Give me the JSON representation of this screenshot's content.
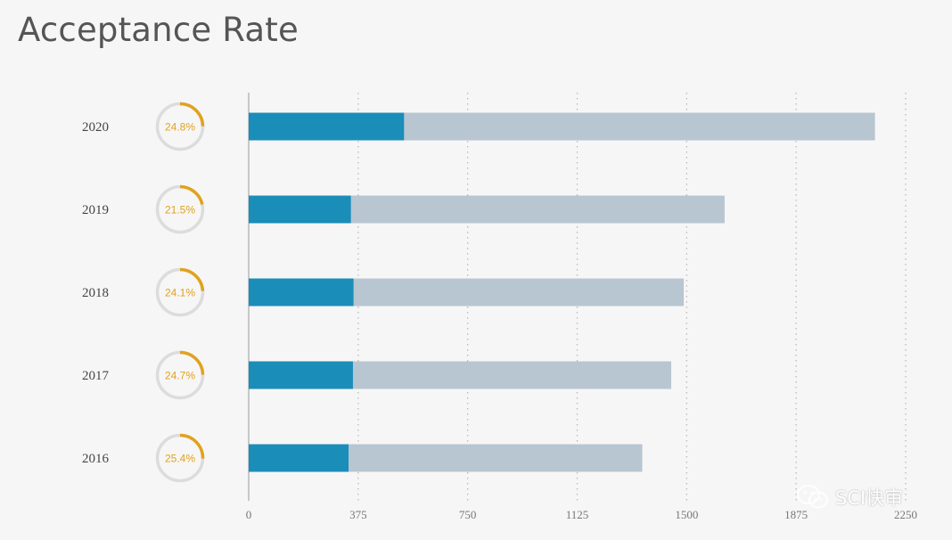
{
  "title": "Acceptance Rate",
  "watermark": "SCI快审",
  "colors": {
    "accepted": "#1b8db9",
    "total": "#b8c6d1",
    "ring_track": "#dcdcdc",
    "ring_arc": "#e0a21e",
    "gridline": "#b5b5b5",
    "axis": "#c8c8c8"
  },
  "chart_data": {
    "type": "bar",
    "orientation": "horizontal",
    "title": "Acceptance Rate",
    "categories": [
      "2020",
      "2019",
      "2018",
      "2017",
      "2016"
    ],
    "series": [
      {
        "values": [
          2145,
          1630,
          1490,
          1447,
          1348
        ]
      },
      {
        "values": [
          532,
          350,
          359,
          357,
          342
        ]
      }
    ],
    "acceptance_rate_percent": [
      24.8,
      21.5,
      24.1,
      24.7,
      25.4
    ],
    "acceptance_rate_labels": [
      "24.8%",
      "21.5%",
      "24.1%",
      "24.7%",
      "25.4%"
    ],
    "xticks": [
      "0",
      "375",
      "750",
      "1125",
      "1500",
      "1875",
      "2250"
    ],
    "xtick_values": [
      0,
      375,
      750,
      1125,
      1500,
      1875,
      2250
    ],
    "xlim": [
      0,
      2250
    ],
    "grid": "vertical-dotted",
    "legend": "none"
  }
}
